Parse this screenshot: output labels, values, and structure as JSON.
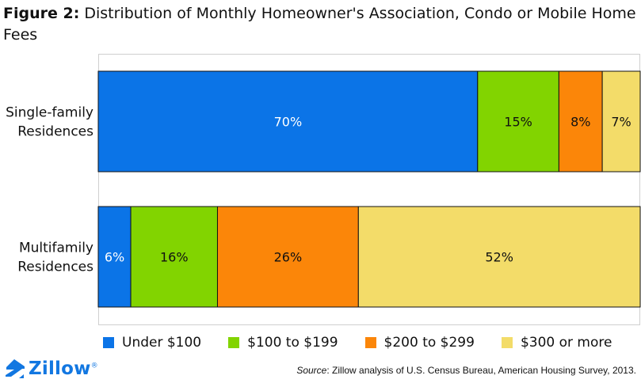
{
  "title": {
    "figure_label": "Figure 2:",
    "text": "Distribution of Monthly Homeowner's Association, Condo or Mobile Home Fees"
  },
  "chart_data": {
    "type": "bar",
    "orientation": "horizontal",
    "stacked": true,
    "categories": [
      [
        "Single-family",
        "Residences"
      ],
      [
        "Multifamily",
        "Residences"
      ]
    ],
    "series": [
      {
        "name": "Under $100",
        "color": "#0b74e7",
        "values": [
          70,
          6
        ],
        "labels": [
          "70%",
          "6%"
        ]
      },
      {
        "name": "$100 to $199",
        "color": "#82d400",
        "values": [
          15,
          16
        ],
        "labels": [
          "15%",
          "16%"
        ]
      },
      {
        "name": "$200 to $299",
        "color": "#fb8609",
        "values": [
          8,
          26
        ],
        "labels": [
          "8%",
          "26%"
        ]
      },
      {
        "name": "$300 or more",
        "color": "#f3dc69",
        "values": [
          7,
          52
        ],
        "labels": [
          "7%",
          "52%"
        ]
      }
    ],
    "xlim": [
      0,
      100
    ],
    "grid": false,
    "legend_position": "bottom"
  },
  "logo": {
    "text": "Zillow",
    "symbol": "®"
  },
  "source": {
    "label": "Source",
    "text": ": Zillow analysis of U.S. Census Bureau, American Housing Survey, 2013."
  }
}
